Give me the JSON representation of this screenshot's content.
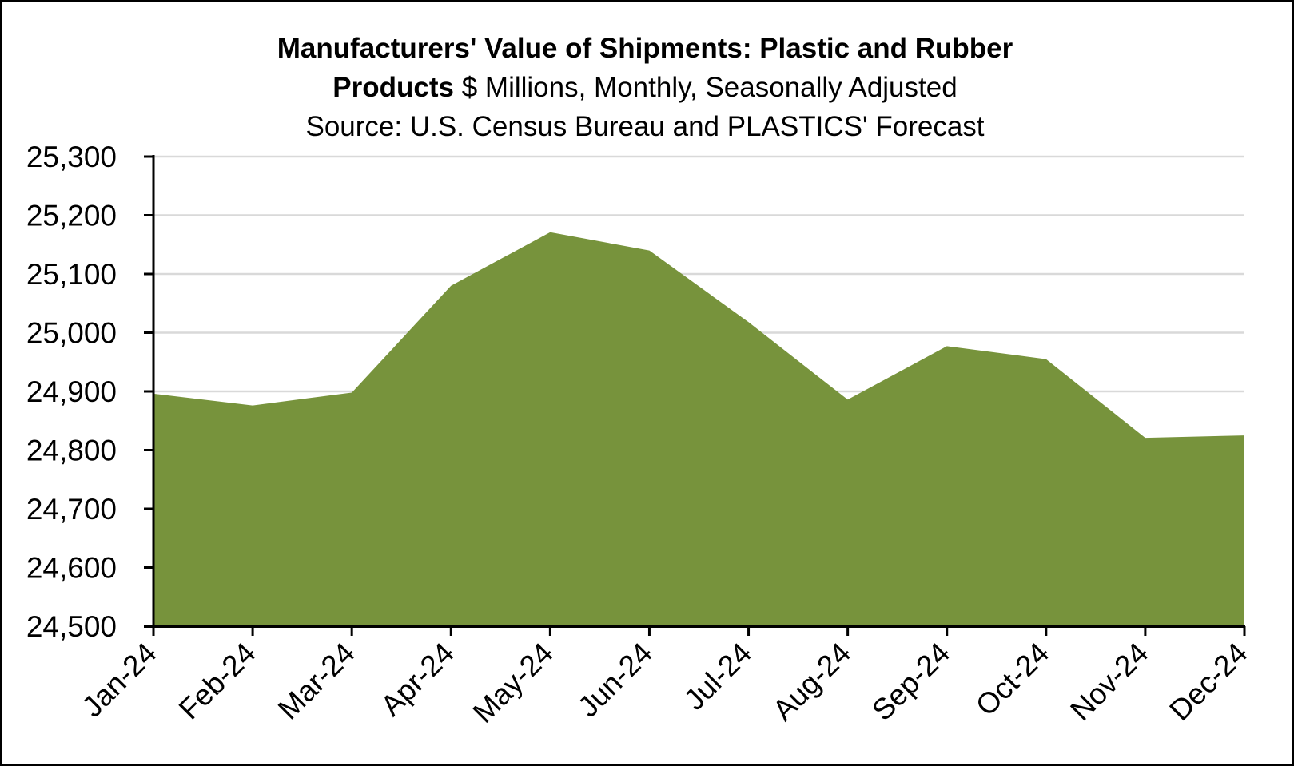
{
  "chart_data": {
    "type": "area",
    "title": "Manufacturers' Value of Shipments: Plastic and Rubber Products",
    "subtitle": "$ Millions, Monthly, Seasonally Adjusted",
    "source": "Source: U.S. Census Bureau and PLASTICS' Forecast",
    "title_lines": [
      {
        "bold": "Manufacturers' Value of Shipments: Plastic and Rubber",
        "normal": ""
      },
      {
        "bold": "Products",
        "normal": " $ Millions, Monthly, Seasonally Adjusted"
      },
      {
        "bold": "",
        "normal": "Source: U.S. Census Bureau and PLASTICS' Forecast"
      }
    ],
    "categories": [
      "Jan-24",
      "Feb-24",
      "Mar-24",
      "Apr-24",
      "May-24",
      "Jun-24",
      "Jul-24",
      "Aug-24",
      "Sep-24",
      "Oct-24",
      "Nov-24",
      "Dec-24"
    ],
    "series": [
      {
        "name": "Value of Shipments",
        "color": "#77933C",
        "values": [
          24896,
          24876,
          24898,
          25080,
          25171,
          25140,
          25018,
          24886,
          24977,
          24955,
          24821,
          24825
        ]
      }
    ],
    "xlabel": "",
    "ylabel": "",
    "ylim": [
      24500,
      25300
    ],
    "yticks": [
      24500,
      24600,
      24700,
      24800,
      24900,
      25000,
      25100,
      25200,
      25300
    ],
    "ytick_labels": [
      "24,500",
      "24,600",
      "24,700",
      "24,800",
      "24,900",
      "25,000",
      "25,100",
      "25,200",
      "25,300"
    ],
    "grid": true,
    "legend": "none",
    "colors": {
      "fill": "#77933C",
      "gridline": "#D9D9D9",
      "axis": "#000000",
      "border": "#000000"
    }
  }
}
